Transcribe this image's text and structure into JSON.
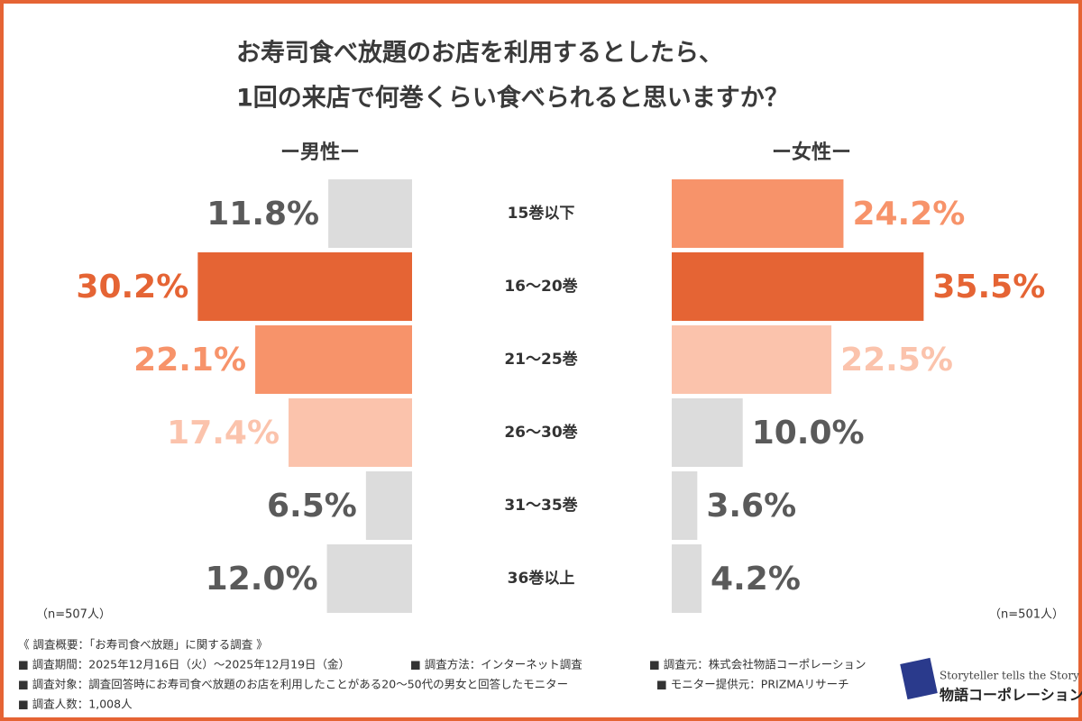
{
  "chart_data": {
    "type": "bar",
    "title": [
      "お寿司食べ放題のお店を利用するとしたら、",
      "1回の来店で何巻くらい食べられると思いますか？"
    ],
    "categories": [
      "15巻以下",
      "16〜20巻",
      "21〜25巻",
      "26〜30巻",
      "31〜35巻",
      "36巻以上"
    ],
    "series": [
      {
        "name": "ー男性ー",
        "note": "（n=507人）",
        "values": [
          11.8,
          30.2,
          22.1,
          17.4,
          6.5,
          12.0
        ],
        "value_labels": [
          "11.8%",
          "30.2%",
          "22.1%",
          "17.4%",
          "6.5%",
          "12.0%"
        ],
        "colors": [
          "#dcdcdc",
          "#e56434",
          "#f7936a",
          "#fbc3ac",
          "#dcdcdc",
          "#dcdcdc"
        ],
        "label_colors": [
          "#5a5a5a",
          "#e56434",
          "#f7936a",
          "#fbc3ac",
          "#5a5a5a",
          "#5a5a5a"
        ]
      },
      {
        "name": "ー女性ー",
        "note": "（n=501人）",
        "values": [
          24.2,
          35.5,
          22.5,
          10.0,
          3.6,
          4.2
        ],
        "value_labels": [
          "24.2%",
          "35.5%",
          "22.5%",
          "10.0%",
          "3.6%",
          "4.2%"
        ],
        "colors": [
          "#f7936a",
          "#e56434",
          "#fbc3ac",
          "#dcdcdc",
          "#dcdcdc",
          "#dcdcdc"
        ],
        "label_colors": [
          "#f7936a",
          "#e56434",
          "#fbc3ac",
          "#5a5a5a",
          "#5a5a5a",
          "#5a5a5a"
        ]
      }
    ]
  },
  "notes": [
    "《 調査概要：「お寿司食べ放題」に関する調査 》",
    "■ 調査期間：2025年12月16日（火）〜2025年12月19日（金）",
    "■ 調査方法：インターネット調査",
    "■ 調査元：株式会社物語コーポレーション",
    "■ 調査対象：調査回答時にお寿司食べ放題のお店を利用したことがある20〜50代の男女と回答したモニター",
    "■ モニター提供元：PRIZMAリサーチ",
    "■ 調査人数：1,008人"
  ],
  "logo": {
    "tagline": "Storyteller tells the Story",
    "name": "物語コーポレーション"
  }
}
